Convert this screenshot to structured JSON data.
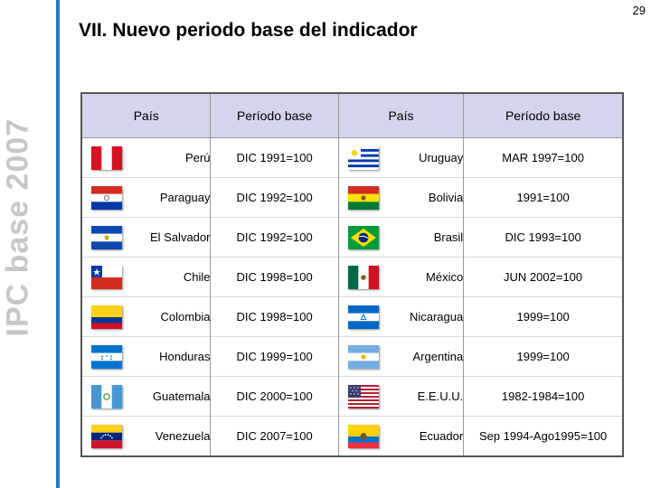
{
  "page_number": "29",
  "title": "VII. Nuevo periodo base del indicador",
  "side_label": "IPC base 2007",
  "table": {
    "headers": [
      "País",
      "Período base",
      "País",
      "Período base"
    ],
    "rows": [
      {
        "left": {
          "country": "Perú",
          "flag": "peru-flag-icon",
          "base": "DIC 1991=100"
        },
        "right": {
          "country": "Uruguay",
          "flag": "uruguay-flag-icon",
          "base": "MAR 1997=100"
        }
      },
      {
        "left": {
          "country": "Paraguay",
          "flag": "paraguay-flag-icon",
          "base": "DIC 1992=100"
        },
        "right": {
          "country": "Bolivia",
          "flag": "bolivia-flag-icon",
          "base": "1991=100"
        }
      },
      {
        "left": {
          "country": "El Salvador",
          "flag": "el-salvador-flag-icon",
          "base": "DIC 1992=100"
        },
        "right": {
          "country": "Brasil",
          "flag": "brazil-flag-icon",
          "base": "DIC 1993=100"
        }
      },
      {
        "left": {
          "country": "Chile",
          "flag": "chile-flag-icon",
          "base": "DIC 1998=100"
        },
        "right": {
          "country": "México",
          "flag": "mexico-flag-icon",
          "base": "JUN 2002=100"
        }
      },
      {
        "left": {
          "country": "Colombia",
          "flag": "colombia-flag-icon",
          "base": "DIC 1998=100"
        },
        "right": {
          "country": "Nicaragua",
          "flag": "nicaragua-flag-icon",
          "base": "1999=100"
        }
      },
      {
        "left": {
          "country": "Honduras",
          "flag": "honduras-flag-icon",
          "base": "DIC 1999=100"
        },
        "right": {
          "country": "Argentina",
          "flag": "argentina-flag-icon",
          "base": "1999=100"
        }
      },
      {
        "left": {
          "country": "Guatemala",
          "flag": "guatemala-flag-icon",
          "base": "DIC 2000=100"
        },
        "right": {
          "country": "E.E.U.U.",
          "flag": "usa-flag-icon",
          "base": "1982-1984=100"
        }
      },
      {
        "left": {
          "country": "Venezuela",
          "flag": "venezuela-flag-icon",
          "base": "DIC 2007=100"
        },
        "right": {
          "country": "Ecuador",
          "flag": "ecuador-flag-icon",
          "base": "Sep 1994-Ago1995=100"
        }
      }
    ]
  },
  "colors": {
    "accent_rule": "#1c7fc1",
    "header_bg": "#d4d4ec",
    "side_label": "#c7c7c7"
  }
}
